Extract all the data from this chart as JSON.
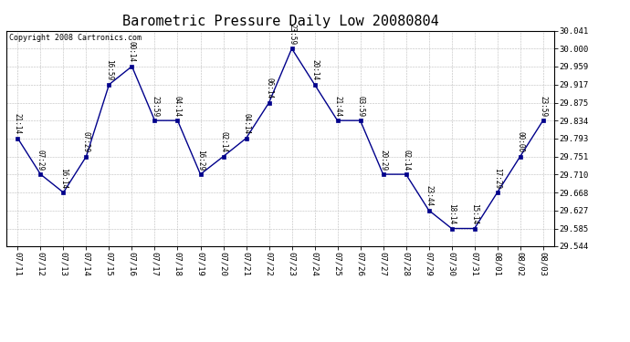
{
  "title": "Barometric Pressure Daily Low 20080804",
  "copyright": "Copyright 2008 Cartronics.com",
  "x_labels": [
    "07/11",
    "07/12",
    "07/13",
    "07/14",
    "07/15",
    "07/16",
    "07/17",
    "07/18",
    "07/19",
    "07/20",
    "07/21",
    "07/22",
    "07/23",
    "07/24",
    "07/25",
    "07/26",
    "07/27",
    "07/28",
    "07/29",
    "07/30",
    "07/31",
    "08/01",
    "08/02",
    "08/03"
  ],
  "x_values": [
    0,
    1,
    2,
    3,
    4,
    5,
    6,
    7,
    8,
    9,
    10,
    11,
    12,
    13,
    14,
    15,
    16,
    17,
    18,
    19,
    20,
    21,
    22,
    23
  ],
  "y_values": [
    29.793,
    29.71,
    29.668,
    29.751,
    29.917,
    29.959,
    29.834,
    29.834,
    29.71,
    29.751,
    29.793,
    29.875,
    30.0,
    29.917,
    29.834,
    29.834,
    29.71,
    29.71,
    29.627,
    29.585,
    29.585,
    29.668,
    29.751,
    29.834
  ],
  "point_labels": [
    "21:14",
    "07:29",
    "16:14",
    "07:29",
    "16:59",
    "00:14",
    "23:59",
    "04:14",
    "16:29",
    "02:14",
    "04:14",
    "06:14",
    "23:59",
    "20:14",
    "21:44",
    "03:59",
    "20:29",
    "02:14",
    "23:44",
    "18:14",
    "15:14",
    "17:29",
    "00:00",
    "23:59"
  ],
  "ylim_min": 29.544,
  "ylim_max": 30.041,
  "ytick_values": [
    29.544,
    29.585,
    29.627,
    29.668,
    29.71,
    29.751,
    29.793,
    29.834,
    29.875,
    29.917,
    29.959,
    30.0,
    30.041
  ],
  "line_color": "#00008b",
  "marker_color": "#00008b",
  "bg_color": "#ffffff",
  "grid_color": "#bbbbbb",
  "title_fontsize": 11,
  "tick_fontsize": 6.5,
  "copyright_fontsize": 6,
  "point_label_fontsize": 5.5
}
